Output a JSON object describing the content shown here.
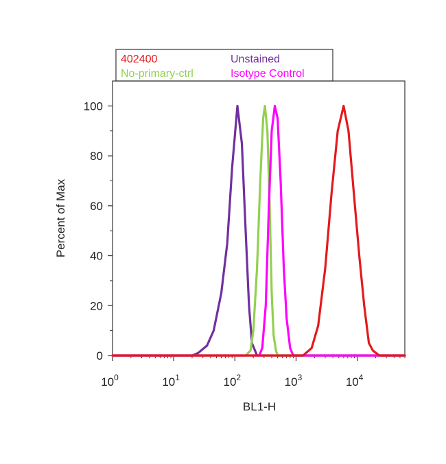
{
  "chart_data": {
    "type": "line",
    "title": "",
    "xlabel": "BL1-H",
    "ylabel": "Percent of Max",
    "xscale": "log",
    "xlim": [
      1,
      60000
    ],
    "ylim": [
      0,
      110
    ],
    "x_ticks": [
      {
        "value": 1,
        "base": "10",
        "exp": "0"
      },
      {
        "value": 10,
        "base": "10",
        "exp": "1"
      },
      {
        "value": 100,
        "base": "10",
        "exp": "2"
      },
      {
        "value": 1000,
        "base": "10",
        "exp": "3"
      },
      {
        "value": 10000,
        "base": "10",
        "exp": "4"
      }
    ],
    "y_ticks": [
      0,
      20,
      40,
      60,
      80,
      100
    ],
    "legend_position": "top",
    "series": [
      {
        "name": "Unstained",
        "color": "#7030a0",
        "points": [
          [
            1,
            0
          ],
          [
            20,
            0
          ],
          [
            25,
            1
          ],
          [
            35,
            4
          ],
          [
            45,
            10
          ],
          [
            60,
            25
          ],
          [
            75,
            45
          ],
          [
            90,
            75
          ],
          [
            110,
            100
          ],
          [
            130,
            85
          ],
          [
            150,
            50
          ],
          [
            170,
            20
          ],
          [
            190,
            5
          ],
          [
            230,
            0
          ],
          [
            60000,
            0
          ]
        ]
      },
      {
        "name": "No-primary-ctrl",
        "color": "#92d050",
        "points": [
          [
            1,
            0
          ],
          [
            150,
            0
          ],
          [
            180,
            2
          ],
          [
            200,
            10
          ],
          [
            230,
            35
          ],
          [
            260,
            70
          ],
          [
            290,
            95
          ],
          [
            310,
            100
          ],
          [
            340,
            90
          ],
          [
            370,
            60
          ],
          [
            400,
            25
          ],
          [
            430,
            8
          ],
          [
            470,
            2
          ],
          [
            500,
            0
          ],
          [
            60000,
            0
          ]
        ]
      },
      {
        "name": "Isotype Control",
        "color": "#ff00ff",
        "points": [
          [
            1,
            0
          ],
          [
            250,
            0
          ],
          [
            280,
            3
          ],
          [
            320,
            20
          ],
          [
            360,
            60
          ],
          [
            400,
            90
          ],
          [
            450,
            100
          ],
          [
            500,
            95
          ],
          [
            560,
            70
          ],
          [
            630,
            35
          ],
          [
            700,
            15
          ],
          [
            800,
            3
          ],
          [
            900,
            0
          ],
          [
            60000,
            0
          ]
        ]
      },
      {
        "name": "402400",
        "color": "#e31a1c",
        "points": [
          [
            1,
            0
          ],
          [
            1300,
            0
          ],
          [
            1800,
            3
          ],
          [
            2300,
            12
          ],
          [
            3000,
            35
          ],
          [
            3800,
            65
          ],
          [
            4800,
            90
          ],
          [
            6000,
            100
          ],
          [
            7200,
            90
          ],
          [
            8800,
            65
          ],
          [
            10800,
            40
          ],
          [
            13000,
            20
          ],
          [
            15500,
            5
          ],
          [
            18000,
            2
          ],
          [
            23000,
            0
          ],
          [
            60000,
            0
          ]
        ]
      }
    ]
  }
}
